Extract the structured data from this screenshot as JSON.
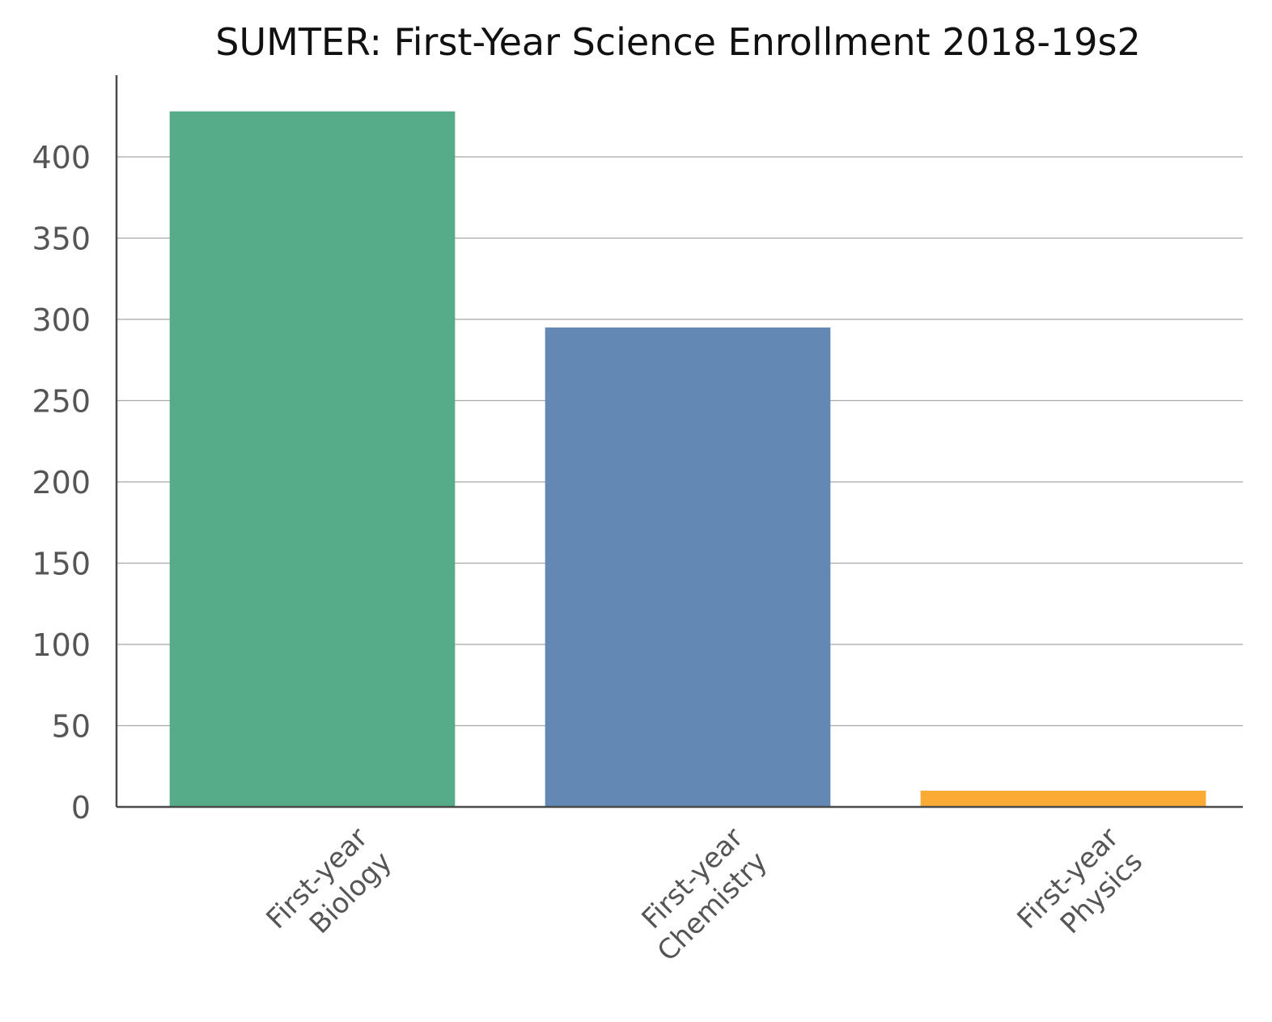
{
  "chart_data": {
    "type": "bar",
    "title": "SUMTER: First-Year Science Enrollment 2018-19s2",
    "xlabel": "",
    "ylabel": "",
    "categories": [
      [
        "First-year",
        "Biology"
      ],
      [
        "First-year",
        "Chemistry"
      ],
      [
        "First-year",
        "Physics"
      ]
    ],
    "values": [
      428,
      295,
      10
    ],
    "colors": [
      "#56ac89",
      "#6388b4",
      "#fbab34"
    ],
    "ylim": [
      0,
      450
    ],
    "yticks": [
      0,
      50,
      100,
      150,
      200,
      250,
      300,
      350,
      400
    ],
    "grid": true,
    "legend": "none"
  }
}
